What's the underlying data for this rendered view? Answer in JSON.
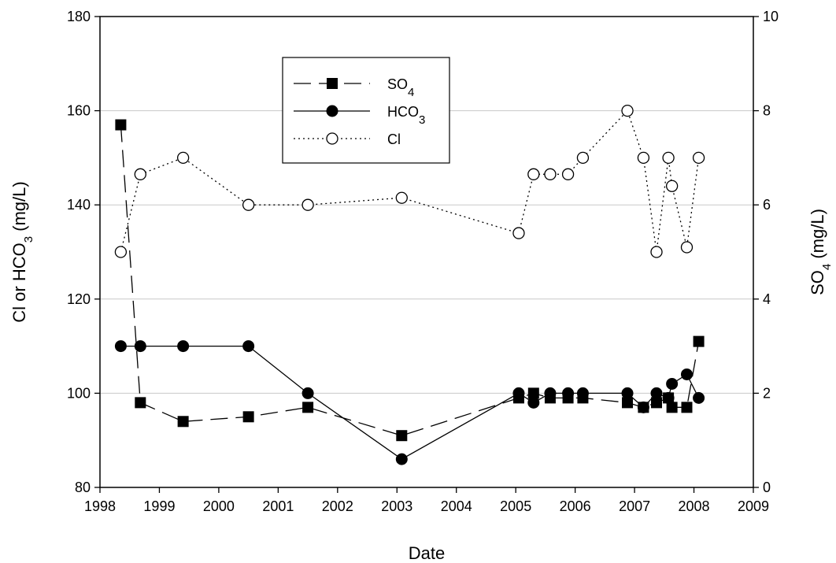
{
  "chart_data": {
    "type": "line",
    "xlabel": "Date",
    "ylabel_left": "Cl or HCO3 (mg/L)",
    "ylabel_right": "SO4 (mg/L)",
    "xlim": [
      1998,
      2009
    ],
    "x_ticks": [
      "1998",
      "1999",
      "2000",
      "2001",
      "2002",
      "2003",
      "2004",
      "2005",
      "2006",
      "2007",
      "2008",
      "2009"
    ],
    "ylim_left": [
      80,
      180
    ],
    "y_ticks_left": [
      "80",
      "100",
      "120",
      "140",
      "160",
      "180"
    ],
    "ylim_right": [
      0,
      10
    ],
    "y_ticks_right": [
      "0",
      "2",
      "4",
      "6",
      "8",
      "10"
    ],
    "grid": "horizontal",
    "legend_position": "upper-left-center",
    "series": [
      {
        "name": "SO4",
        "axis": "right",
        "marker": "filled-square",
        "line": "dashed",
        "x": [
          1998.35,
          1998.68,
          1999.4,
          2000.5,
          2001.5,
          2003.08,
          2005.05,
          2005.3,
          2005.58,
          2005.88,
          2006.13,
          2006.88,
          2007.15,
          2007.37,
          2007.57,
          2007.63,
          2007.88,
          2008.08
        ],
        "y": [
          7.7,
          1.8,
          1.4,
          1.5,
          1.7,
          1.1,
          1.9,
          2.0,
          1.9,
          1.9,
          1.9,
          1.8,
          1.7,
          1.8,
          1.9,
          1.7,
          1.7,
          3.1
        ]
      },
      {
        "name": "HCO3",
        "axis": "left",
        "marker": "filled-circle",
        "line": "solid",
        "x": [
          1998.35,
          1998.68,
          1999.4,
          2000.5,
          2001.5,
          2003.08,
          2005.05,
          2005.3,
          2005.58,
          2005.88,
          2006.13,
          2006.88,
          2007.15,
          2007.37,
          2007.57,
          2007.63,
          2007.88,
          2008.08
        ],
        "y": [
          110,
          110,
          110,
          110,
          100,
          86,
          100,
          98,
          100,
          100,
          100,
          100,
          97,
          100,
          99,
          102,
          104,
          99
        ]
      },
      {
        "name": "Cl",
        "axis": "left",
        "marker": "open-circle",
        "line": "dotted",
        "x": [
          1998.35,
          1998.68,
          1999.4,
          2000.5,
          2001.5,
          2003.08,
          2005.05,
          2005.3,
          2005.58,
          2005.88,
          2006.13,
          2006.88,
          2007.15,
          2007.37,
          2007.57,
          2007.63,
          2007.88,
          2008.08
        ],
        "y": [
          130,
          146.5,
          150,
          140,
          140,
          141.5,
          134,
          146.5,
          146.5,
          146.5,
          150,
          160,
          150,
          130,
          150,
          144,
          131,
          150
        ]
      }
    ]
  }
}
